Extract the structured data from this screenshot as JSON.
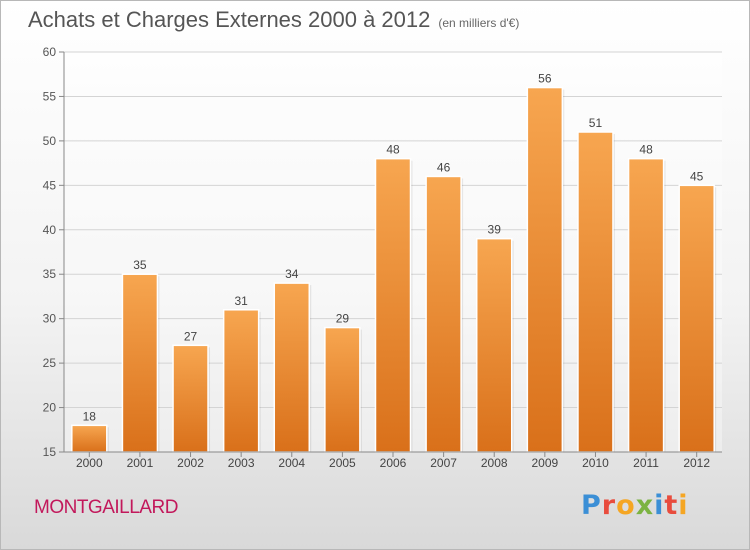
{
  "header": {
    "title": "Achats et Charges Externes 2000 à 2012",
    "unit": "(en milliers d'€)"
  },
  "footer": {
    "town": "MONTGAILLARD",
    "logo_letters": [
      {
        "char": "P",
        "color": "#3b8fd6"
      },
      {
        "char": "r",
        "color": "#e84c3d"
      },
      {
        "char": "o",
        "color": "#f5a623"
      },
      {
        "char": "x",
        "color": "#7cb342"
      },
      {
        "char": "i",
        "color": "#3b8fd6"
      },
      {
        "char": "t",
        "color": "#e84c3d"
      },
      {
        "char": "i",
        "color": "#f5a623"
      }
    ]
  },
  "chart_data": {
    "type": "bar",
    "categories": [
      "2000",
      "2001",
      "2002",
      "2003",
      "2004",
      "2005",
      "2006",
      "2007",
      "2008",
      "2009",
      "2010",
      "2011",
      "2012"
    ],
    "values": [
      18,
      35,
      27,
      31,
      34,
      29,
      48,
      46,
      39,
      56,
      51,
      48,
      45
    ],
    "ylim": [
      15,
      60
    ],
    "yticks": [
      15,
      20,
      25,
      30,
      35,
      40,
      45,
      50,
      55,
      60
    ],
    "grid": true,
    "bar_color": "#f28c28"
  }
}
